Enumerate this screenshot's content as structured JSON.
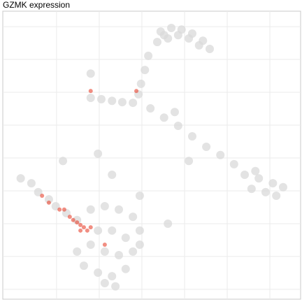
{
  "chart_data": {
    "type": "scatter",
    "title": "GZMK expression",
    "xlim": [
      -3.26,
      3.72
    ],
    "ylim": [
      -4.3,
      4.47
    ],
    "xticks": [
      -2,
      -1,
      0,
      1,
      2,
      3
    ],
    "yticks": [
      -4,
      -3,
      -2,
      -1,
      0,
      1,
      2,
      3,
      4
    ],
    "grid": true,
    "series": [
      {
        "color": "#d9d9d9",
        "x": [
          0.44,
          0.69,
          0.93,
          1.18,
          1.43,
          1.59,
          0.61,
          0.85,
          1.1,
          1.34,
          0.36,
          0.52,
          0.15,
          0.07,
          -0.02,
          -0.08,
          -1.2,
          -0.95,
          -0.7,
          -0.46,
          -0.21,
          -1.2,
          0.77,
          0.2,
          0.52,
          0.85,
          1.18,
          1.51,
          1.84,
          2.16,
          2.41,
          2.74,
          3.07,
          3.31,
          2.57,
          2.9,
          3.15,
          2.66,
          -2.84,
          -2.59,
          -2.43,
          -2.18,
          -2.02,
          -1.77,
          -1.52,
          -1.2,
          -0.87,
          -0.54,
          -0.21,
          -1.03,
          -0.7,
          -0.38,
          -0.05,
          -1.2,
          -0.87,
          -0.54,
          -0.21,
          -1.36,
          -1.03,
          -0.7,
          -0.38,
          -0.87,
          -0.62,
          -0.05,
          -1.52,
          -1.85,
          -0.7,
          1.1,
          -0.05,
          0.61,
          -1.03
        ],
        "values": [
          3.85,
          3.96,
          3.91,
          3.79,
          3.57,
          3.32,
          3.64,
          3.74,
          3.64,
          3.43,
          3.53,
          3.74,
          3.11,
          2.68,
          2.26,
          1.94,
          1.83,
          1.79,
          1.74,
          1.7,
          1.68,
          2.57,
          1.4,
          1.51,
          1.23,
          0.98,
          0.66,
          0.34,
          0.09,
          -0.19,
          -0.51,
          -0.62,
          -0.77,
          -0.89,
          -0.94,
          -1.04,
          -1.15,
          -0.4,
          -0.62,
          -0.77,
          -1.04,
          -1.26,
          -1.47,
          -1.68,
          -1.89,
          -1.57,
          -1.47,
          -1.57,
          -1.79,
          -2.21,
          -2.21,
          -2.43,
          -2.21,
          -2.64,
          -2.85,
          -2.96,
          -2.85,
          -3.28,
          -3.49,
          -3.6,
          -3.38,
          -3.81,
          -3.91,
          -2.64,
          -2.85,
          -0.09,
          -0.51,
          -0.09,
          -1.15,
          -2.0,
          0.13
        ]
      },
      {
        "color": "#e8432e",
        "x": [
          -1.69,
          -1.52,
          -1.44,
          -1.36,
          -1.82,
          -1.61,
          -1.28,
          -1.93,
          -2.18,
          -2.34,
          -1.2,
          -1.44,
          -0.87,
          -1.2,
          -0.13
        ],
        "values": [
          -1.79,
          -1.96,
          -2.04,
          -2.11,
          -1.57,
          -1.89,
          -2.21,
          -1.57,
          -1.36,
          -1.15,
          -2.11,
          -2.21,
          -2.64,
          2.04,
          2.04
        ]
      }
    ]
  }
}
